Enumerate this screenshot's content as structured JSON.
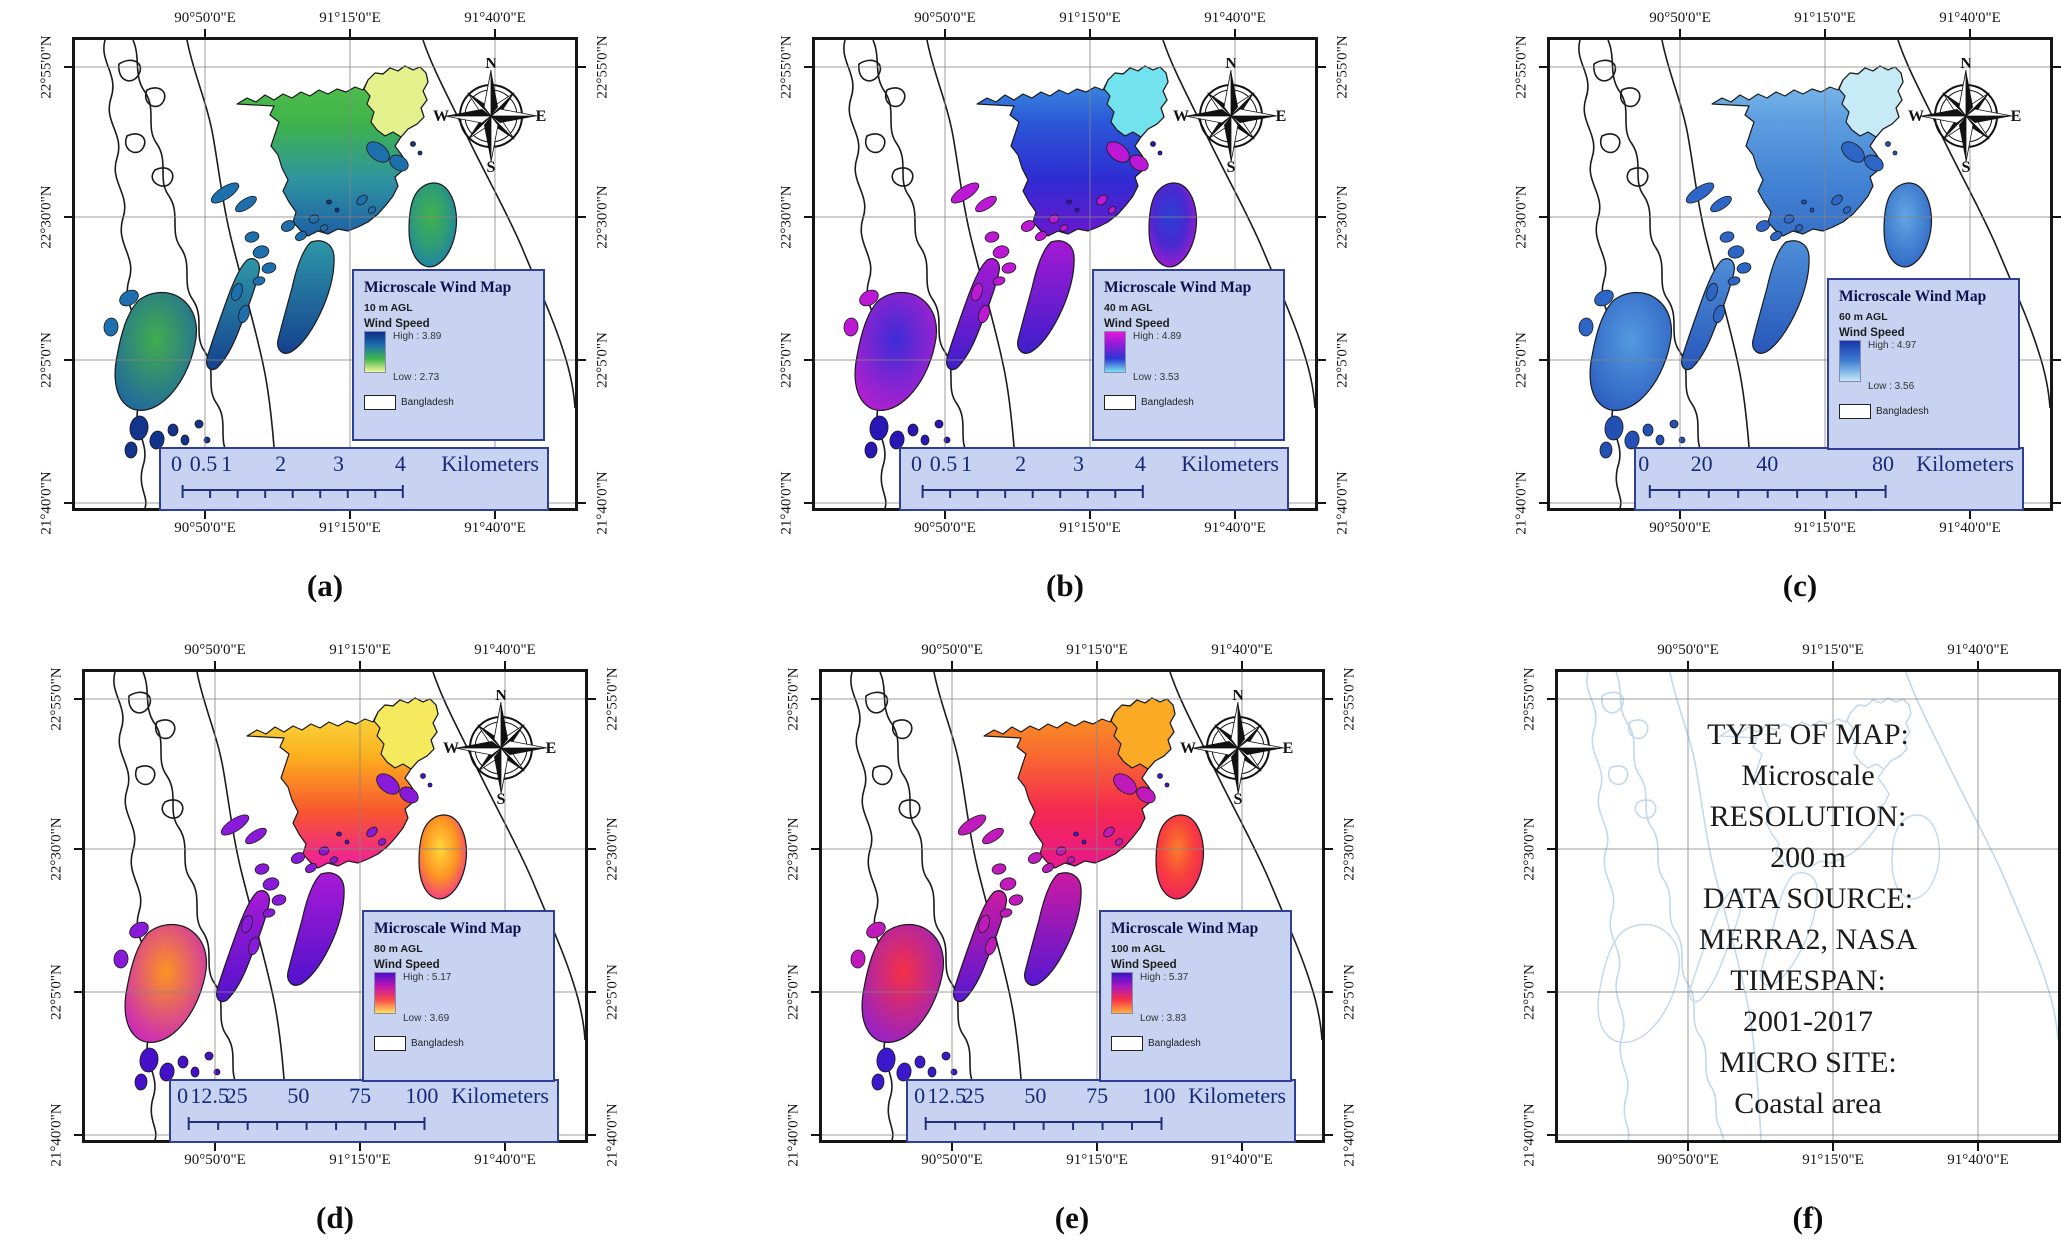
{
  "axes": {
    "lon_labels": [
      "90°50'0\"E",
      "91°15'0\"E",
      "91°40'0\"E"
    ],
    "lat_labels": [
      "22°55'0\"N",
      "22°30'0\"N",
      "22°5'0\"N",
      "21°40'0\"N"
    ]
  },
  "compass_points": {
    "north": "N",
    "east": "E",
    "south": "S",
    "west": "W"
  },
  "panels": [
    {
      "id": "a",
      "type": "map",
      "caption": "(a)",
      "legend": {
        "title": "Microscale Wind Map",
        "agl": "10 m AGL",
        "wind_speed": "Wind Speed",
        "high": "High : 3.89",
        "low": "Low : 2.73",
        "boundary": "Bangladesh"
      },
      "scalebar": {
        "marks": [
          {
            "label": "0",
            "pos": 4
          },
          {
            "label": "0.5",
            "pos": 11
          },
          {
            "label": "1",
            "pos": 17
          },
          {
            "label": "2",
            "pos": 31
          },
          {
            "label": "3",
            "pos": 46
          },
          {
            "label": "4",
            "pos": 62
          }
        ],
        "unit": "Kilometers"
      },
      "colors": {
        "land": [
          "#55c24c",
          "#3fb34a",
          "#2f94a0",
          "#1d5fa6"
        ],
        "ne": "#e2f18c",
        "isl": "#1e6fae",
        "isl_dark": "#12348c",
        "oval_core": "#42b14c",
        "oval_mid": "#2f9e75",
        "oval_rim": "#1b7ab2",
        "big_core": "#41ad4d",
        "big_rim": "#1e64a4",
        "cres_hi": "#2e97a8",
        "cres_lo": "#15418f",
        "ramp": [
          "#0c2e8c",
          "#1e6fae",
          "#3eb44a",
          "#f2f898"
        ]
      }
    },
    {
      "id": "b",
      "type": "map",
      "caption": "(b)",
      "legend": {
        "title": "Microscale Wind Map",
        "agl": "40 m AGL",
        "wind_speed": "Wind Speed",
        "high": "High : 4.89",
        "low": "Low : 3.53",
        "boundary": "Bangladesh"
      },
      "scalebar": {
        "marks": [
          {
            "label": "0",
            "pos": 4
          },
          {
            "label": "0.5",
            "pos": 11
          },
          {
            "label": "1",
            "pos": 17
          },
          {
            "label": "2",
            "pos": 31
          },
          {
            "label": "3",
            "pos": 46
          },
          {
            "label": "4",
            "pos": 62
          }
        ],
        "unit": "Kilometers"
      },
      "colors": {
        "land": [
          "#3f9fe0",
          "#2b57d8",
          "#2f2cd2",
          "#6c17cf"
        ],
        "ne": "#72e2ee",
        "isl": "#bd18d6",
        "isl_dark": "#2a16b6",
        "oval_core": "#2941d6",
        "oval_mid": "#4a28d0",
        "oval_rim": "#b81ad0",
        "big_core": "#3b2cd6",
        "big_rim": "#bc1fcf",
        "cres_hi": "#a61ad4",
        "cres_lo": "#3d1ecb",
        "ramp": [
          "#e517d8",
          "#8a1bd8",
          "#2c37d4",
          "#7ae4f0"
        ]
      }
    },
    {
      "id": "c",
      "type": "map",
      "caption": "(c)",
      "legend": {
        "title": "Microscale Wind Map",
        "agl": "60 m AGL",
        "wind_speed": "Wind Speed",
        "high": "High : 4.97",
        "low": "Low : 3.56",
        "boundary": "Bangladesh"
      },
      "scalebar": {
        "marks": [
          {
            "label": "0",
            "pos": 2
          },
          {
            "label": "20",
            "pos": 17
          },
          {
            "label": "40",
            "pos": 34
          },
          {
            "label": "80",
            "pos": 64
          }
        ],
        "unit": "Kilometers"
      },
      "colors": {
        "land": [
          "#85c0ec",
          "#5d9de0",
          "#4384d4",
          "#3670c8"
        ],
        "ne": "#c6eaf6",
        "isl": "#2e66c8",
        "isl_dark": "#2450b4",
        "oval_core": "#66a6e4",
        "oval_mid": "#4585d2",
        "oval_rim": "#2d62c2",
        "big_core": "#549ae0",
        "big_rim": "#2a5cbe",
        "cres_hi": "#4e8ed8",
        "cres_lo": "#2857ba",
        "ramp": [
          "#1636aa",
          "#3f7ed2",
          "#c4eaf8"
        ]
      }
    },
    {
      "id": "d",
      "type": "map",
      "caption": "(d)",
      "legend": {
        "title": "Microscale Wind Map",
        "agl": "80 m AGL",
        "wind_speed": "Wind Speed",
        "high": "High : 5.17",
        "low": "Low : 3.69",
        "boundary": "Bangladesh"
      },
      "scalebar": {
        "marks": [
          {
            "label": "0",
            "pos": 3
          },
          {
            "label": "12.5",
            "pos": 10
          },
          {
            "label": "25",
            "pos": 17
          },
          {
            "label": "50",
            "pos": 33
          },
          {
            "label": "75",
            "pos": 49
          },
          {
            "label": "100",
            "pos": 65
          }
        ],
        "unit": "Kilometers"
      },
      "colors": {
        "land": [
          "#f7e44e",
          "#fcb21e",
          "#f8562e",
          "#ee1da2"
        ],
        "ne": "#f5e95e",
        "isl": "#8a1ada",
        "isl_dark": "#4510ca",
        "oval_core": "#ffd83a",
        "oval_mid": "#fc9422",
        "oval_rim": "#ee22a0",
        "big_core": "#fc9420",
        "big_rim": "#c621c6",
        "cres_hi": "#a81ad6",
        "cres_lo": "#5212cc",
        "ramp": [
          "#4c10d2",
          "#c016b0",
          "#f84848",
          "#ffe25c"
        ]
      }
    },
    {
      "id": "e",
      "type": "map",
      "caption": "(e)",
      "legend": {
        "title": "Microscale Wind Map",
        "agl": "100 m AGL",
        "wind_speed": "Wind Speed",
        "high": "High : 5.37",
        "low": "Low : 3.83",
        "boundary": "Bangladesh"
      },
      "scalebar": {
        "marks": [
          {
            "label": "0",
            "pos": 3
          },
          {
            "label": "12.5",
            "pos": 10
          },
          {
            "label": "25",
            "pos": 17
          },
          {
            "label": "50",
            "pos": 33
          },
          {
            "label": "75",
            "pos": 49
          },
          {
            "label": "100",
            "pos": 65
          }
        ],
        "unit": "Kilometers"
      },
      "colors": {
        "land": [
          "#fba01e",
          "#f86a30",
          "#f42850",
          "#e8188e"
        ],
        "ne": "#fbaa26",
        "isl": "#c01abc",
        "isl_dark": "#3c18cc",
        "oval_core": "#fb7e2c",
        "oval_mid": "#f8403c",
        "oval_rim": "#ee1e66",
        "big_core": "#f43046",
        "big_rim": "#9020d2",
        "cres_hi": "#cc1aa2",
        "cres_lo": "#5618d2",
        "ramp": [
          "#3a14ca",
          "#a818c0",
          "#f8304a",
          "#ffb03c"
        ]
      }
    },
    {
      "id": "f",
      "type": "info",
      "caption": "(f)",
      "info_lines": [
        "TYPE OF MAP:",
        "Microscale",
        "RESOLUTION:",
        "200 m",
        "DATA SOURCE:",
        "MERRA2, NASA",
        "TIMESPAN:",
        "2001-2017",
        "MICRO SITE:",
        "Coastal area"
      ]
    }
  ]
}
